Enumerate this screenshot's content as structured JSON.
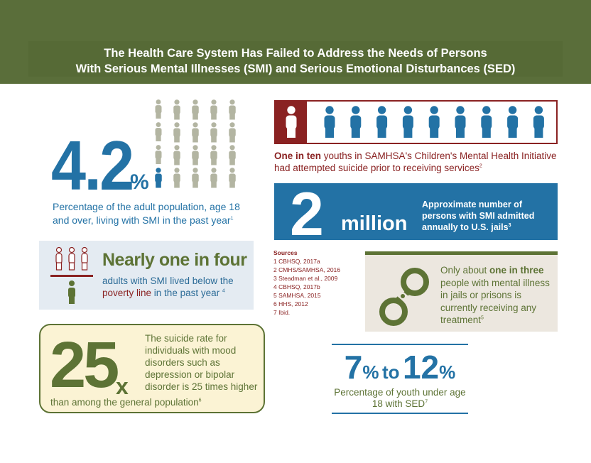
{
  "header": {
    "title_line1": "The Health Care System Has Failed to Address the Needs of Persons",
    "title_line2": "With Serious Mental Illnesses (SMI) and Serious Emotional Disturbances (SED)"
  },
  "stat_42": {
    "number": "4.2",
    "unit": "%",
    "text": "Percentage of the adult population, age 18 and over, living with SMI in the past year",
    "footnote": "1",
    "highlighted_fraction": 0.04
  },
  "stat_four": {
    "title": "Nearly one in four",
    "text_a": "adults with SMI lived below the ",
    "text_highlight": "poverty line",
    "text_b": " in the past year ",
    "footnote": "4"
  },
  "stat_25": {
    "number": "25",
    "unit": "x",
    "text_a": "The suicide rate for individuals with mood disorders such as depression or bipolar disorder is 25 times higher",
    "text_b": "than among the general population",
    "footnote": "6"
  },
  "stat_ten": {
    "highlight": "One in ten",
    "text": " youths in SAMHSA's Children's Mental Health Initiative had attempted suicide prior to receiving services",
    "footnote": "2",
    "total_icons": 10,
    "highlighted_icons": 1
  },
  "stat_2m": {
    "number": "2",
    "unit": "million",
    "text": "Approximate number of persons with SMI admitted annually to U.S. jails",
    "footnote": "3"
  },
  "sources": {
    "heading": "Sources",
    "items": [
      "1  CBHSQ, 2017a",
      "2  CMHS/SAMHSA, 2016",
      "3  Steadman et al., 2009",
      "4  CBHSQ, 2017b",
      "5  SAMHSA, 2015",
      "6  HHS, 2012",
      "7  Ibid."
    ]
  },
  "stat_three": {
    "text_a": "Only about ",
    "highlight": "one in three",
    "text_b": " people with mental illness in jails or prisons is currently receiving any treatment",
    "footnote": "5"
  },
  "stat_sed": {
    "low": "7",
    "high": "12",
    "unit": "%",
    "connector": "to",
    "text": "Percentage of youth under age 18 with SED",
    "footnote": "7"
  },
  "colors": {
    "green": "#5d7335",
    "blue": "#2372a5",
    "red": "#8a2222",
    "gray": "#b3b5a2"
  },
  "icons": [
    "person-icon",
    "handcuffs-icon"
  ]
}
